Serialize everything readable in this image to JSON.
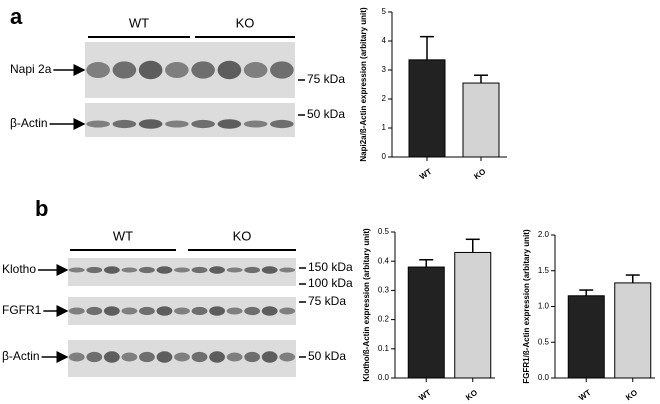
{
  "figure": {
    "panels": [
      {
        "label": "a",
        "groups": [
          "WT",
          "KO"
        ],
        "rows": [
          {
            "name": "Napi 2a",
            "markers": [
              "75 kDa"
            ]
          },
          {
            "name": "β-Actin",
            "markers": [
              "50 kDa"
            ]
          }
        ]
      },
      {
        "label": "b",
        "groups": [
          "WT",
          "KO"
        ],
        "rows": [
          {
            "name": "Klotho",
            "markers": [
              "150 kDa",
              "100 kDa"
            ]
          },
          {
            "name": "FGFR1",
            "markers": [
              "75 kDa"
            ]
          },
          {
            "name": "β-Actin",
            "markers": [
              "50 kDa"
            ]
          }
        ]
      }
    ]
  },
  "chart_data": [
    {
      "type": "bar",
      "y_label": "Napi2a/ß-Actin expression (arbitary unit)",
      "categories": [
        "WT",
        "KO"
      ],
      "values": [
        3.35,
        2.55
      ],
      "errors": [
        0.8,
        0.27
      ],
      "colors": [
        "#222222",
        "#d3d3d3"
      ],
      "ylim": [
        0,
        5
      ],
      "yticks": [
        0,
        1,
        2,
        3,
        4,
        5
      ]
    },
    {
      "type": "bar",
      "y_label": "Klotho/ß-Actin expression (arbitary unit)",
      "categories": [
        "WT",
        "KO"
      ],
      "values": [
        0.38,
        0.43
      ],
      "errors": [
        0.025,
        0.045
      ],
      "colors": [
        "#222222",
        "#d3d3d3"
      ],
      "ylim": [
        0,
        0.5
      ],
      "yticks": [
        {
          "value": 0,
          "label": "0.0"
        },
        0.1,
        0.2,
        0.3,
        0.4,
        0.5
      ]
    },
    {
      "type": "bar",
      "y_label": "FGFR1/ß-Actin expression (arbitary unit)",
      "categories": [
        "WT",
        "KO"
      ],
      "values": [
        1.15,
        1.33
      ],
      "errors": [
        0.08,
        0.11
      ],
      "colors": [
        "#222222",
        "#d3d3d3"
      ],
      "ylim": [
        0,
        2
      ],
      "yticks": [
        {
          "value": 0,
          "label": "0.0"
        },
        0.5,
        {
          "value": 1,
          "label": "1.0"
        },
        1.5,
        {
          "value": 2,
          "label": "2.0"
        }
      ]
    }
  ]
}
